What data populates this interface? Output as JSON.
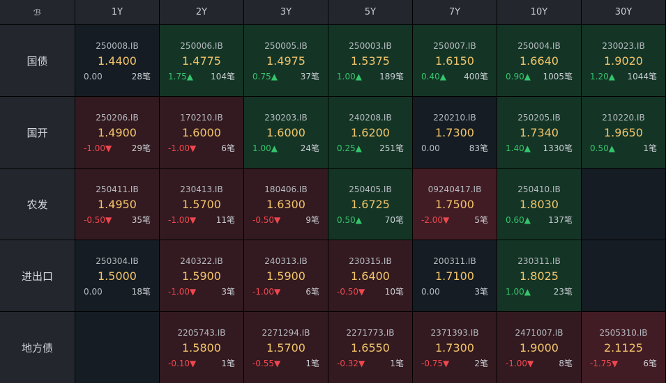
{
  "tenors": [
    "1Y",
    "2Y",
    "3Y",
    "5Y",
    "7Y",
    "10Y",
    "30Y"
  ],
  "rows": [
    {
      "label": "国债",
      "cells": [
        {
          "code": "250008.IB",
          "yield": "1.4400",
          "change": "0.00",
          "dir": "flat",
          "count": "28笔",
          "tone": "neutral"
        },
        {
          "code": "250006.IB",
          "yield": "1.4775",
          "change": "1.75▲",
          "dir": "up",
          "count": "104笔",
          "tone": "up"
        },
        {
          "code": "250005.IB",
          "yield": "1.4975",
          "change": "0.75▲",
          "dir": "up",
          "count": "37笔",
          "tone": "up"
        },
        {
          "code": "250003.IB",
          "yield": "1.5375",
          "change": "1.00▲",
          "dir": "up",
          "count": "189笔",
          "tone": "up"
        },
        {
          "code": "250007.IB",
          "yield": "1.6150",
          "change": "0.40▲",
          "dir": "up",
          "count": "400笔",
          "tone": "up"
        },
        {
          "code": "250004.IB",
          "yield": "1.6640",
          "change": "0.90▲",
          "dir": "up",
          "count": "1005笔",
          "tone": "up"
        },
        {
          "code": "230023.IB",
          "yield": "1.9020",
          "change": "1.20▲",
          "dir": "up",
          "count": "1044笔",
          "tone": "up"
        }
      ]
    },
    {
      "label": "国开",
      "cells": [
        {
          "code": "250206.IB",
          "yield": "1.4900",
          "change": "-1.00▼",
          "dir": "down",
          "count": "29笔",
          "tone": "down"
        },
        {
          "code": "170210.IB",
          "yield": "1.6000",
          "change": "-1.00▼",
          "dir": "down",
          "count": "6笔",
          "tone": "down"
        },
        {
          "code": "230203.IB",
          "yield": "1.6000",
          "change": "1.00▲",
          "dir": "up",
          "count": "24笔",
          "tone": "up"
        },
        {
          "code": "240208.IB",
          "yield": "1.6200",
          "change": "0.25▲",
          "dir": "up",
          "count": "251笔",
          "tone": "up"
        },
        {
          "code": "220210.IB",
          "yield": "1.7300",
          "change": "0.00",
          "dir": "flat",
          "count": "83笔",
          "tone": "neutral"
        },
        {
          "code": "250205.IB",
          "yield": "1.7340",
          "change": "1.40▲",
          "dir": "up",
          "count": "1330笔",
          "tone": "up"
        },
        {
          "code": "210220.IB",
          "yield": "1.9650",
          "change": "0.50▲",
          "dir": "up",
          "count": "1笔",
          "tone": "up"
        }
      ]
    },
    {
      "label": "农发",
      "cells": [
        {
          "code": "250411.IB",
          "yield": "1.4950",
          "change": "-0.50▼",
          "dir": "down",
          "count": "35笔",
          "tone": "down"
        },
        {
          "code": "230413.IB",
          "yield": "1.5700",
          "change": "-1.00▼",
          "dir": "down",
          "count": "11笔",
          "tone": "down"
        },
        {
          "code": "180406.IB",
          "yield": "1.6300",
          "change": "-0.50▼",
          "dir": "down",
          "count": "9笔",
          "tone": "down"
        },
        {
          "code": "250405.IB",
          "yield": "1.6725",
          "change": "0.50▲",
          "dir": "up",
          "count": "70笔",
          "tone": "up"
        },
        {
          "code": "09240417.IB",
          "yield": "1.7500",
          "change": "-2.00▼",
          "dir": "down",
          "count": "5笔",
          "tone": "down-strong"
        },
        {
          "code": "250410.IB",
          "yield": "1.8030",
          "change": "0.60▲",
          "dir": "up",
          "count": "137笔",
          "tone": "up"
        },
        null
      ]
    },
    {
      "label": "进出口",
      "cells": [
        {
          "code": "250304.IB",
          "yield": "1.5000",
          "change": "0.00",
          "dir": "flat",
          "count": "18笔",
          "tone": "neutral"
        },
        {
          "code": "240322.IB",
          "yield": "1.5900",
          "change": "-1.00▼",
          "dir": "down",
          "count": "3笔",
          "tone": "down"
        },
        {
          "code": "240313.IB",
          "yield": "1.5900",
          "change": "-1.00▼",
          "dir": "down",
          "count": "6笔",
          "tone": "down"
        },
        {
          "code": "230315.IB",
          "yield": "1.6400",
          "change": "-0.50▼",
          "dir": "down",
          "count": "10笔",
          "tone": "down"
        },
        {
          "code": "200311.IB",
          "yield": "1.7100",
          "change": "0.00",
          "dir": "flat",
          "count": "3笔",
          "tone": "neutral"
        },
        {
          "code": "230311.IB",
          "yield": "1.8025",
          "change": "1.00▲",
          "dir": "up",
          "count": "23笔",
          "tone": "up"
        },
        null
      ]
    },
    {
      "label": "地方债",
      "cells": [
        null,
        {
          "code": "2205743.IB",
          "yield": "1.5800",
          "change": "-0.10▼",
          "dir": "down",
          "count": "1笔",
          "tone": "down"
        },
        {
          "code": "2271294.IB",
          "yield": "1.5700",
          "change": "-0.55▼",
          "dir": "down",
          "count": "1笔",
          "tone": "down"
        },
        {
          "code": "2271773.IB",
          "yield": "1.6550",
          "change": "-0.32▼",
          "dir": "down",
          "count": "1笔",
          "tone": "down"
        },
        {
          "code": "2371393.IB",
          "yield": "1.7300",
          "change": "-0.75▼",
          "dir": "down",
          "count": "2笔",
          "tone": "down"
        },
        {
          "code": "2471007.IB",
          "yield": "1.9000",
          "change": "-1.00▼",
          "dir": "down",
          "count": "8笔",
          "tone": "down"
        },
        {
          "code": "2505310.IB",
          "yield": "2.1125",
          "change": "-1.75▼",
          "dir": "down",
          "count": "6笔",
          "tone": "down-strong"
        }
      ]
    }
  ]
}
